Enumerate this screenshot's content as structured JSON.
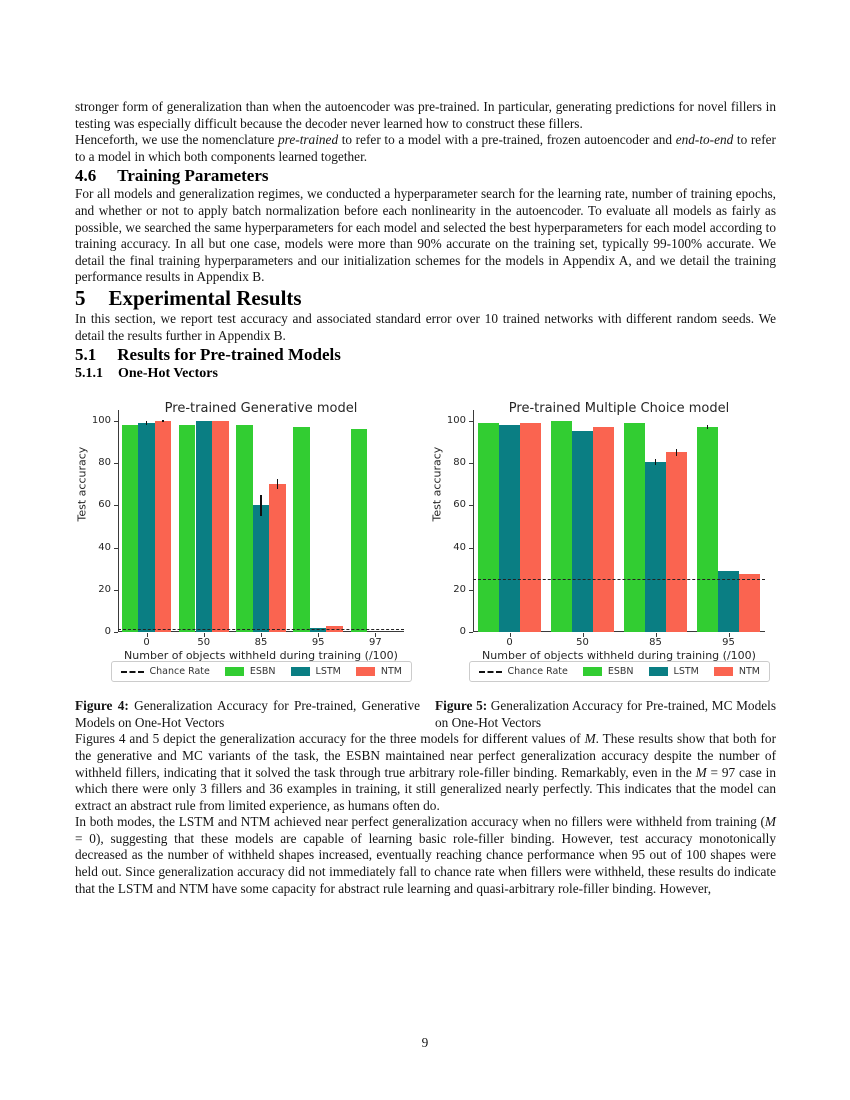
{
  "page": {
    "number": "9"
  },
  "content": {
    "p1": {
      "s0": "stronger form of generalization than when the autoencoder was pre-trained. In particular, generating predictions for novel fillers in testing was especially difficult because the decoder never learned how to construct these fillers."
    },
    "p2": {
      "s0": "Henceforth, we use the nomenclature ",
      "s1": "pre-trained",
      "s2": " to refer to a model with a pre-trained, frozen autoencoder and ",
      "s3": "end-to-end",
      "s4": " to refer to a model in which both components learned together."
    },
    "h46": {
      "number": "4.6",
      "title": "Training Parameters"
    },
    "p3": {
      "s0": "For all models and generalization regimes, we conducted a hyperparameter search for the learning rate, number of training epochs, and whether or not to apply batch normalization before each nonlinearity in the autoencoder. To evaluate all models as fairly as possible, we searched the same hyperparameters for each model and selected the best hyperparameters for each model according to training accuracy. In all but one case, models were more than 90% accurate on the training set, typically 99-100% accurate. We detail the final training hyperparameters and our initialization schemes for the models in Appendix A, and we detail the training performance results in Appendix B."
    },
    "h5": {
      "number": "5",
      "title": "Experimental Results"
    },
    "p4": {
      "s0": "In this section, we report test accuracy and associated standard error over 10 trained networks with different random seeds. We detail the results further in Appendix B."
    },
    "h51": {
      "number": "5.1",
      "title": "Results for Pre-trained Models"
    },
    "h511": {
      "number": "5.1.1",
      "title": "One-Hot Vectors"
    },
    "fig4": {
      "label": "Figure 4:",
      "text": " Generalization Accuracy for Pre-trained, Generative Models on One-Hot Vectors"
    },
    "fig5": {
      "label": "Figure 5:",
      "text": " Generalization Accuracy for Pre-trained, MC Models on One-Hot Vectors"
    },
    "p5": {
      "s0": "Figures 4 and 5 depict the generalization accuracy for the three models for different values of ",
      "s1": "M",
      "s2": ". These results show that both for the generative and MC variants of the task, the ESBN maintained near perfect generalization accuracy despite the number of withheld fillers, indicating that it solved the task through true arbitrary role-filler binding. Remarkably, even in the ",
      "s3": "M",
      "s4": " = 97 case in which there were only 3 fillers and 36 examples in training, it still generalized nearly perfectly. This indicates that the model can extract an abstract rule from limited experience, as humans often do."
    },
    "p6": {
      "s0": "In both modes, the LSTM and NTM achieved near perfect generalization accuracy when no fillers were withheld from training (",
      "s1": "M",
      "s2": " = 0), suggesting that these models are capable of learning basic role-filler binding. However, test accuracy monotonically decreased as the number of withheld shapes increased, eventually reaching chance performance when 95 out of 100 shapes were held out. Since generalization accuracy did not immediately fall to chance rate when fillers were withheld, these results do indicate that the LSTM and NTM have some capacity for abstract rule learning and quasi-arbitrary role-filler binding. However,"
    }
  },
  "chart_data": [
    {
      "type": "bar",
      "title": "Pre-trained Generative model",
      "xlabel": "Number of objects withheld during training (/100)",
      "ylabel": "Test accuracy",
      "categories": [
        "0",
        "50",
        "85",
        "95",
        "97"
      ],
      "yticks": [
        0,
        20,
        40,
        60,
        80,
        100
      ],
      "ylim": [
        0,
        105
      ],
      "grid": false,
      "legend_position": "bottom",
      "chance_rate": 1.5,
      "chance_label": "Chance Rate",
      "series": [
        {
          "name": "ESBN",
          "color": "#32cd32",
          "values": [
            98,
            98,
            98,
            97,
            96
          ],
          "errors": [
            0,
            0,
            0,
            0,
            0
          ]
        },
        {
          "name": "LSTM",
          "color": "#0a7e83",
          "values": [
            99,
            100,
            60,
            2,
            0
          ],
          "errors": [
            1,
            0,
            5,
            0,
            0
          ]
        },
        {
          "name": "NTM",
          "color": "#fa6450",
          "values": [
            100,
            100,
            70,
            3,
            0
          ],
          "errors": [
            0.5,
            0,
            2.5,
            0,
            0
          ]
        }
      ]
    },
    {
      "type": "bar",
      "title": "Pre-trained Multiple Choice model",
      "xlabel": "Number of objects withheld during training (/100)",
      "ylabel": "Test accuracy",
      "categories": [
        "0",
        "50",
        "85",
        "95"
      ],
      "yticks": [
        0,
        20,
        40,
        60,
        80,
        100
      ],
      "ylim": [
        0,
        105
      ],
      "grid": false,
      "legend_position": "bottom",
      "chance_rate": 25,
      "chance_label": "Chance Rate",
      "series": [
        {
          "name": "ESBN",
          "color": "#32cd32",
          "values": [
            99,
            100,
            99,
            97
          ],
          "errors": [
            0,
            0,
            0,
            1
          ]
        },
        {
          "name": "LSTM",
          "color": "#0a7e83",
          "values": [
            98,
            95,
            80.5,
            29
          ],
          "errors": [
            0,
            0,
            1.5,
            0
          ]
        },
        {
          "name": "NTM",
          "color": "#fa6450",
          "values": [
            99,
            97,
            85,
            27.5
          ],
          "errors": [
            0,
            0,
            1.5,
            0
          ]
        }
      ]
    }
  ]
}
